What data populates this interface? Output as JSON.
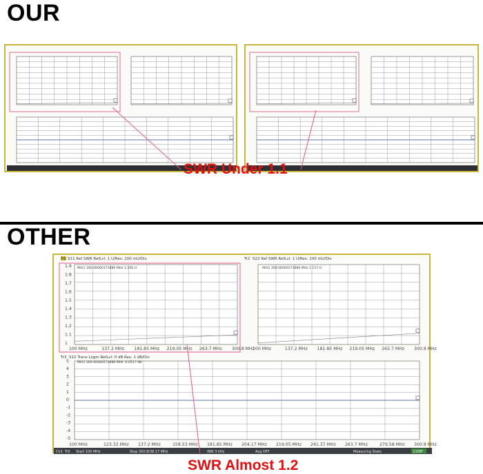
{
  "headings": {
    "our": "OUR",
    "other": "OTHER"
  },
  "captions": {
    "our": "SWR Under 1.1",
    "other": "SWR Almost 1.2"
  },
  "colors": {
    "highlight": "#e0588c",
    "caption": "#e01010",
    "sheet_border": "#c9b53a",
    "grid": "#8a8a8a",
    "trace": "#6a6a6a"
  },
  "other_sheet": {
    "trace_tags": {
      "tr1": "Tr1",
      "tr2": "Tr2",
      "tr3": "Tr3"
    },
    "panel_swr1": {
      "header": "S11 Ref SWR RefLvl: 1 U/Res: 100 mU/Div",
      "marker": "Mrk1 300.00000171686 MHz 1.106 U",
      "y_ticks": [
        "1.9",
        "1.8",
        "1.7",
        "1.6",
        "1.5",
        "1.4",
        "1.3",
        "1.2",
        "1.1",
        "1"
      ],
      "x_ticks": [
        "100 MHz",
        "137.2 MHz",
        "181.85 MHz",
        "219.05 MHz",
        "263.7 MHz",
        "300.8 MHz"
      ]
    },
    "panel_swr2": {
      "header": "S22 Ref SWR RefLvl: 1 U/Res: 100 mU/Div",
      "marker": "Mrk1 300.00000171686 MHz 1.117 U",
      "x_ticks": [
        "100 MHz",
        "137.2 MHz",
        "181.85 MHz",
        "219.05 MHz",
        "263.7 MHz",
        "300.8 MHz"
      ]
    },
    "panel_trans": {
      "header": "S12 Trans Logm RefLvl: 0 dB Res: 1 dB/Div",
      "marker": "Mrk1 300.00000171686 MHz -0.0517 dB",
      "y_ticks": [
        "5",
        "4",
        "3",
        "2",
        "1",
        "0",
        "-1",
        "-2",
        "-3",
        "-4",
        "-5"
      ],
      "x_ticks": [
        "100 MHz",
        "123.32 MHz",
        "137.2 MHz",
        "158.53 MHz",
        "181.85 MHz",
        "204.17 MHz",
        "219.05 MHz",
        "241.37 MHz",
        "263.7 MHz",
        "279.58 MHz",
        "300.8 MHz"
      ]
    },
    "status_bar": {
      "ch": "Ch1",
      "trace": "Tr3",
      "start": "Start 100 MHz",
      "stop": "Stop 300.8/38.17 MHz",
      "bw": "IBW 3 kHz",
      "avg": "Avg OFF",
      "mode": "Measuring State",
      "conf": "CONF"
    }
  }
}
